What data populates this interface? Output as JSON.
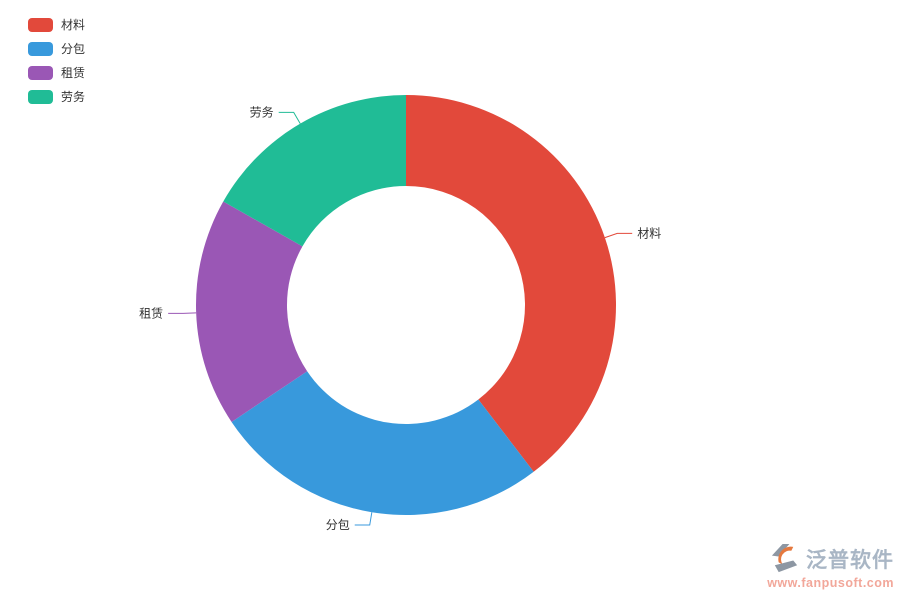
{
  "page": {
    "background": "#ffffff"
  },
  "chart_data": {
    "type": "pie",
    "subtype": "donut",
    "categories": [
      "材料",
      "分包",
      "租赁",
      "劳务"
    ],
    "values": [
      39.6,
      26.0,
      17.6,
      16.8
    ],
    "colors": [
      "#e2493b",
      "#3899dc",
      "#9a57b5",
      "#20bc96"
    ],
    "title": "",
    "label_color": "#333333",
    "start_angle": 90,
    "clockwise": true,
    "inner_radius_ratio": 0.567,
    "legend_position": "top-left",
    "labels_outside_with_leader_lines": true
  },
  "legend": {
    "items": [
      {
        "label": "材料",
        "color": "#e2493b"
      },
      {
        "label": "分包",
        "color": "#3899dc"
      },
      {
        "label": "租赁",
        "color": "#9a57b5"
      },
      {
        "label": "劳务",
        "color": "#20bc96"
      }
    ]
  },
  "watermark": {
    "brand": "泛普软件",
    "url": "www.fanpusoft.com",
    "brand_color": "#a9b6c5",
    "url_color": "#f2a79a",
    "icon_gray": "#8d97a3",
    "icon_orange": "#e5793f"
  }
}
